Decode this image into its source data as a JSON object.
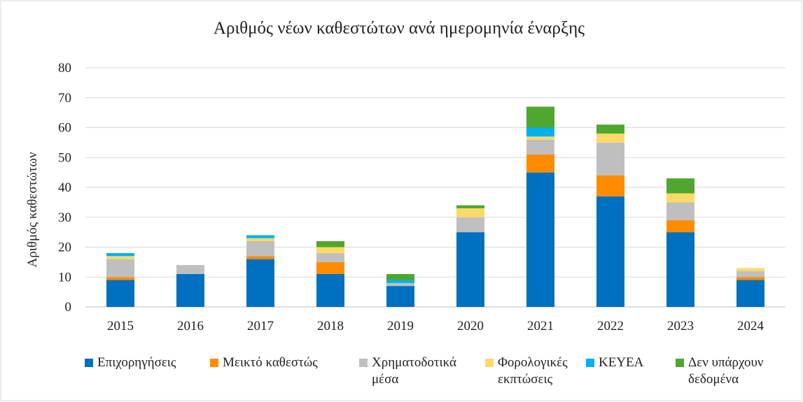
{
  "chart_data": {
    "type": "bar",
    "stacked": true,
    "title": "Αριθμός νέων καθεστώτων ανά ημερομηνία έναρξης",
    "y_label": "Αριθμός καθεστώτων",
    "categories": [
      "2015",
      "2016",
      "2017",
      "2018",
      "2019",
      "2020",
      "2021",
      "2022",
      "2023",
      "2024"
    ],
    "series": [
      {
        "name": "Επιχορηγήσεις",
        "color": "#0070c0",
        "values": [
          9,
          11,
          16,
          11,
          7,
          25,
          45,
          37,
          25,
          9
        ]
      },
      {
        "name": "Μεικτό καθεστώς",
        "color": "#ff8c00",
        "values": [
          1,
          0,
          1,
          4,
          0,
          0,
          6,
          7,
          4,
          1
        ]
      },
      {
        "name": "Χρηματοδοτικά μέσα",
        "color": "#bfbfbf",
        "values": [
          6,
          3,
          5,
          3,
          1,
          5,
          5,
          11,
          6,
          2
        ]
      },
      {
        "name": "Φορολογικές εκπτώσεις",
        "color": "#ffd966",
        "values": [
          1,
          0,
          1,
          2,
          0,
          3,
          1,
          3,
          3,
          1
        ]
      },
      {
        "name": "ΚΕΥΕΑ",
        "color": "#00b0f0",
        "values": [
          1,
          0,
          1,
          0,
          1,
          0,
          3,
          0,
          0,
          0
        ]
      },
      {
        "name": "Δεν υπάρχουν δεδομένα",
        "color": "#4ea72e",
        "values": [
          0,
          0,
          0,
          2,
          2,
          1,
          7,
          3,
          5,
          0
        ]
      }
    ],
    "ylim": [
      0,
      80
    ],
    "yticks": [
      0,
      10,
      20,
      30,
      40,
      50,
      60,
      70,
      80
    ],
    "grid": true,
    "legend": "bottom"
  }
}
